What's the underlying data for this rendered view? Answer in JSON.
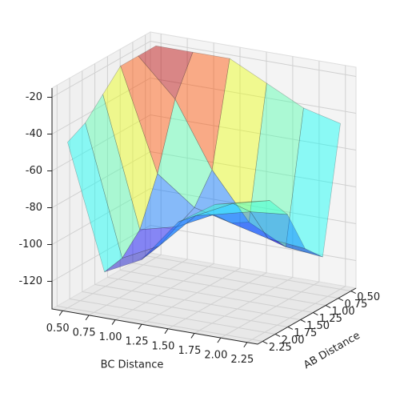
{
  "chart_data": {
    "type": "surface",
    "xlabel": "BC Distance",
    "ylabel": "AB Distance",
    "x": [
      0.5,
      0.85,
      1.2,
      1.55,
      1.9,
      2.25
    ],
    "y": [
      0.5,
      0.85,
      1.2,
      1.55,
      1.9,
      2.25
    ],
    "z": [
      [
        -20,
        -20,
        -20,
        -30,
        -40,
        -45
      ],
      [
        -20,
        -40,
        -75,
        -100,
        -110,
        -112
      ],
      [
        -20,
        -75,
        -90,
        -95,
        -100,
        -102
      ],
      [
        -30,
        -100,
        -95,
        -85,
        -80,
        -78
      ],
      [
        -40,
        -110,
        -100,
        -80,
        -70,
        -65
      ],
      [
        -45,
        -112,
        -102,
        -78,
        -65,
        -60
      ]
    ],
    "xlim": [
      0.4,
      2.35
    ],
    "ylim": [
      0.4,
      2.35
    ],
    "zlim": [
      -135,
      -15
    ],
    "xticks": [
      {
        "value": 0.5,
        "label": "0.50"
      },
      {
        "value": 0.75,
        "label": "0.75"
      },
      {
        "value": 1.0,
        "label": "1.00"
      },
      {
        "value": 1.25,
        "label": "1.25"
      },
      {
        "value": 1.5,
        "label": "1.50"
      },
      {
        "value": 1.75,
        "label": "1.75"
      },
      {
        "value": 2.0,
        "label": "2.00"
      },
      {
        "value": 2.25,
        "label": "2.25"
      }
    ],
    "yticks": [
      {
        "value": 0.5,
        "label": "0.50"
      },
      {
        "value": 0.75,
        "label": "0.75"
      },
      {
        "value": 1.0,
        "label": "1.00"
      },
      {
        "value": 1.25,
        "label": "1.25"
      },
      {
        "value": 1.5,
        "label": "1.50"
      },
      {
        "value": 1.75,
        "label": "1.75"
      },
      {
        "value": 2.0,
        "label": "2.00"
      },
      {
        "value": 2.25,
        "label": "2.25"
      }
    ],
    "zticks": [
      -20,
      -40,
      -60,
      -80,
      -100,
      -120
    ],
    "grid": true,
    "colormap": "jet",
    "alpha": 0.45
  }
}
